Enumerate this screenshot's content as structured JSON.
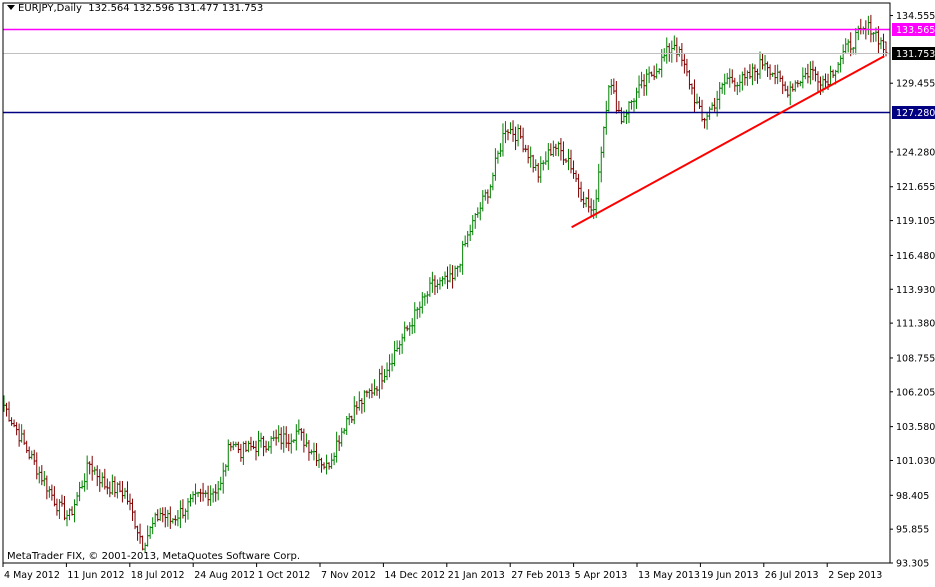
{
  "header": {
    "symbol": "EURJPY,Daily",
    "ohlc": "132.564 132.596 131.477 131.753"
  },
  "footer": {
    "copyright": "MetaTrader FIX, © 2001-2013, MetaQuotes Software Corp."
  },
  "chart_data": {
    "type": "ohlc-bar",
    "symbol": "EURJPY",
    "timeframe": "Daily",
    "last_ohlc": {
      "open": 132.564,
      "high": 132.596,
      "low": 131.477,
      "close": 131.753
    },
    "ylim": [
      93.305,
      135.5
    ],
    "y_ticks": [
      "134.555",
      "133.565",
      "131.753",
      "129.455",
      "127.280",
      "124.280",
      "121.655",
      "119.105",
      "116.480",
      "113.930",
      "111.380",
      "108.755",
      "106.205",
      "103.580",
      "101.030",
      "98.405",
      "95.855",
      "93.305"
    ],
    "x_ticks": [
      "4 May 2012",
      "11 Jun 2012",
      "18 Jul 2012",
      "24 Aug 2012",
      "1 Oct 2012",
      "7 Nov 2012",
      "14 Dec 2012",
      "21 Jan 2013",
      "27 Feb 2013",
      "5 Apr 2013",
      "13 May 2013",
      "19 Jun 2013",
      "26 Jul 2013",
      "2 Sep 2013"
    ],
    "horizontal_lines": [
      {
        "label": "133.565",
        "value": 133.565,
        "color": "#ff00ff"
      },
      {
        "label": "127.280",
        "value": 127.28,
        "color": "#000080"
      },
      {
        "label": "131.753",
        "value": 131.753,
        "color": "#c0c0c0",
        "current_price": true
      }
    ],
    "trendline": {
      "color": "#ff0000",
      "from": {
        "date": "2013-03-25",
        "price": 118.6
      },
      "to": {
        "date": "2013-09-20",
        "price": 131.5
      }
    },
    "price_path": [
      [
        0,
        105.2
      ],
      [
        10,
        101.5
      ],
      [
        22,
        97.4
      ],
      [
        26,
        96.8
      ],
      [
        34,
        100.8
      ],
      [
        40,
        99.2
      ],
      [
        48,
        98.6
      ],
      [
        55,
        94.8
      ],
      [
        62,
        97.1
      ],
      [
        66,
        96.5
      ],
      [
        76,
        98.1
      ],
      [
        86,
        99.1
      ],
      [
        90,
        102.6
      ],
      [
        94,
        101.7
      ],
      [
        104,
        102.4
      ],
      [
        112,
        102.7
      ],
      [
        116,
        103.2
      ],
      [
        124,
        101.5
      ],
      [
        128,
        100.5
      ],
      [
        136,
        104.2
      ],
      [
        148,
        106.8
      ],
      [
        162,
        111.6
      ],
      [
        170,
        114.2
      ],
      [
        178,
        114.6
      ],
      [
        185,
        118.4
      ],
      [
        193,
        121.8
      ],
      [
        199,
        126.2
      ],
      [
        205,
        125.4
      ],
      [
        212,
        122.6
      ],
      [
        218,
        124.8
      ],
      [
        224,
        123.8
      ],
      [
        229,
        121.2
      ],
      [
        234,
        119.5
      ],
      [
        240,
        129.6
      ],
      [
        245,
        126.8
      ],
      [
        250,
        128.4
      ],
      [
        260,
        130.9
      ],
      [
        266,
        132.5
      ],
      [
        272,
        129.6
      ],
      [
        277,
        126.6
      ],
      [
        282,
        128.0
      ],
      [
        287,
        129.8
      ],
      [
        294,
        129.6
      ],
      [
        302,
        131.2
      ],
      [
        310,
        128.9
      ],
      [
        320,
        130.4
      ],
      [
        326,
        129.6
      ],
      [
        332,
        131.4
      ],
      [
        338,
        132.9
      ],
      [
        344,
        133.7
      ],
      [
        347,
        132.9
      ],
      [
        350,
        131.75
      ]
    ],
    "color_up": "#008000",
    "color_down": "#800000",
    "grid": false,
    "legend": "none"
  }
}
